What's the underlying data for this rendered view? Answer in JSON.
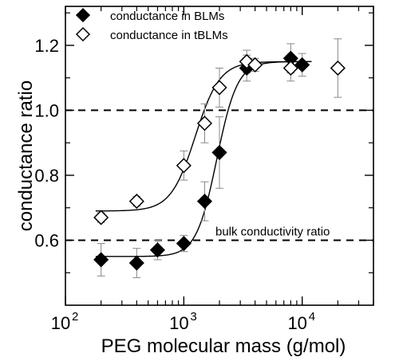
{
  "chart_data": {
    "type": "scatter",
    "xlabel": "PEG molecular mass (g/mol)",
    "ylabel": "conductance ratio",
    "x_scale": "log",
    "xlim": [
      100,
      40000
    ],
    "ylim": [
      0.4,
      1.32
    ],
    "y_ticks": [
      "0.6",
      "0.8",
      "1.0",
      "1.2"
    ],
    "x_tick_bases": [
      "10",
      "10",
      "10"
    ],
    "x_tick_exponents": [
      "2",
      "3",
      "4"
    ],
    "x_tick_values": [
      100,
      1000,
      10000
    ],
    "legend": {
      "placement": "top-left"
    },
    "series": [
      {
        "name": "conductance in BLMs",
        "marker": "filled-diamond",
        "color": "#000000",
        "points": [
          {
            "x": 200,
            "y": 0.54,
            "err": 0.05
          },
          {
            "x": 400,
            "y": 0.53,
            "err": 0.045
          },
          {
            "x": 600,
            "y": 0.57,
            "err": 0.03
          },
          {
            "x": 1000,
            "y": 0.59,
            "err": 0.025
          },
          {
            "x": 1500,
            "y": 0.72,
            "err": 0.06
          },
          {
            "x": 2000,
            "y": 0.87,
            "err": 0.11
          },
          {
            "x": 3400,
            "y": 1.13,
            "err": 0.04
          },
          {
            "x": 8000,
            "y": 1.16,
            "err": 0.045
          },
          {
            "x": 10000,
            "y": 1.14,
            "err": 0.035
          }
        ],
        "fit": {
          "bottom": 0.55,
          "top": 1.15,
          "x_half": 1900,
          "hill": 5.0
        }
      },
      {
        "name": "conductance in tBLMs",
        "marker": "open-diamond",
        "color": "#000000",
        "points": [
          {
            "x": 200,
            "y": 0.67,
            "err": 0.015
          },
          {
            "x": 400,
            "y": 0.72,
            "err": 0.015
          },
          {
            "x": 1000,
            "y": 0.83,
            "err": 0.045
          },
          {
            "x": 1500,
            "y": 0.96,
            "err": 0.06
          },
          {
            "x": 2000,
            "y": 1.07,
            "err": 0.06
          },
          {
            "x": 3400,
            "y": 1.15,
            "err": 0.035
          },
          {
            "x": 4000,
            "y": 1.14,
            "err": 0.02
          },
          {
            "x": 8000,
            "y": 1.13,
            "err": 0.04
          },
          {
            "x": 20000,
            "y": 1.13,
            "err": 0.09
          }
        ],
        "fit": {
          "bottom": 0.69,
          "top": 1.15,
          "x_half": 1250,
          "hill": 4.2
        }
      }
    ],
    "reference_lines": [
      {
        "y": 1.0,
        "style": "dashed",
        "label": ""
      },
      {
        "y": 0.6,
        "style": "dashed",
        "label": "bulk conductivity ratio"
      }
    ]
  }
}
